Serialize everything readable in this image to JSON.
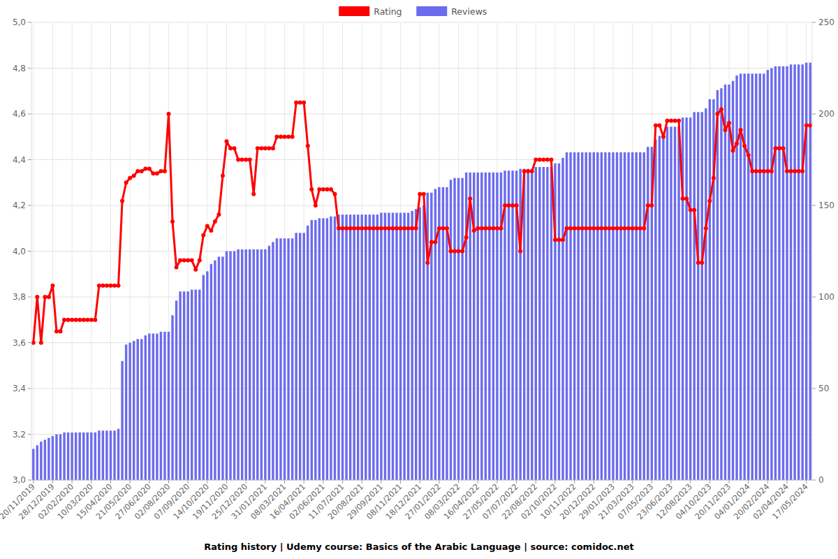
{
  "chart_data": {
    "type": "bar",
    "title": "Rating history | Udemy course: Basics of the Arabic Language | source: comidoc.net",
    "categories": [
      "20/11/2019",
      null,
      null,
      null,
      null,
      "28/12/2019",
      null,
      null,
      null,
      null,
      "02/02/2020",
      null,
      null,
      null,
      null,
      "10/03/2020",
      null,
      null,
      null,
      null,
      "15/04/2020",
      null,
      null,
      null,
      null,
      "21/05/2020",
      null,
      null,
      null,
      null,
      "27/06/2020",
      null,
      null,
      null,
      null,
      "02/08/2020",
      null,
      null,
      null,
      null,
      "07/09/2020",
      null,
      null,
      null,
      null,
      "14/10/2020",
      null,
      null,
      null,
      null,
      "19/11/2020",
      null,
      null,
      null,
      null,
      "25/12/2020",
      null,
      null,
      null,
      null,
      "31/01/2021",
      null,
      null,
      null,
      null,
      "08/03/2021",
      null,
      null,
      null,
      null,
      "16/04/2021",
      null,
      null,
      null,
      null,
      "02/06/2021",
      null,
      null,
      null,
      null,
      "11/07/2021",
      null,
      null,
      null,
      null,
      "20/08/2021",
      null,
      null,
      null,
      null,
      "29/09/2021",
      null,
      null,
      null,
      null,
      "08/11/2021",
      null,
      null,
      null,
      null,
      "18/12/2021",
      null,
      null,
      null,
      null,
      "27/01/2022",
      null,
      null,
      null,
      null,
      "08/03/2022",
      null,
      null,
      null,
      null,
      "16/04/2022",
      null,
      null,
      null,
      null,
      "27/05/2022",
      null,
      null,
      null,
      null,
      "07/07/2022",
      null,
      null,
      null,
      null,
      "22/08/2022",
      null,
      null,
      null,
      null,
      "02/10/2022",
      null,
      null,
      null,
      null,
      "10/11/2022",
      null,
      null,
      null,
      null,
      "20/12/2022",
      null,
      null,
      null,
      null,
      "29/01/2023",
      null,
      null,
      null,
      null,
      "21/03/2023",
      null,
      null,
      null,
      null,
      "07/05/2023",
      null,
      null,
      null,
      null,
      "23/06/2023",
      null,
      null,
      null,
      null,
      "12/08/2023",
      null,
      null,
      null,
      null,
      "04/10/2023",
      null,
      null,
      null,
      null,
      "20/11/2023",
      null,
      null,
      null,
      null,
      "04/01/2024",
      null,
      null,
      null,
      null,
      "20/02/2024",
      null,
      null,
      null,
      null,
      "02/04/2024",
      null,
      null,
      null,
      null,
      "17/05/2024",
      null
    ],
    "series": [
      {
        "name": "Rating",
        "type": "line",
        "color": "#ff0000",
        "marker": "circle",
        "axis": "y",
        "values": [
          3.6,
          3.8,
          3.6,
          3.8,
          3.8,
          3.85,
          3.65,
          3.65,
          3.7,
          3.7,
          3.7,
          3.7,
          3.7,
          3.7,
          3.7,
          3.7,
          3.7,
          3.85,
          3.85,
          3.85,
          3.85,
          3.85,
          3.85,
          4.22,
          4.3,
          4.32,
          4.33,
          4.35,
          4.35,
          4.36,
          4.36,
          4.34,
          4.34,
          4.35,
          4.35,
          4.6,
          4.13,
          3.93,
          3.96,
          3.96,
          3.96,
          3.96,
          3.92,
          3.96,
          4.07,
          4.11,
          4.09,
          4.13,
          4.16,
          4.33,
          4.48,
          4.45,
          4.45,
          4.4,
          4.4,
          4.4,
          4.4,
          4.25,
          4.45,
          4.45,
          4.45,
          4.45,
          4.45,
          4.5,
          4.5,
          4.5,
          4.5,
          4.5,
          4.65,
          4.65,
          4.65,
          4.46,
          4.27,
          4.2,
          4.27,
          4.27,
          4.27,
          4.27,
          4.25,
          4.1,
          4.1,
          4.1,
          4.1,
          4.1,
          4.1,
          4.1,
          4.1,
          4.1,
          4.1,
          4.1,
          4.1,
          4.1,
          4.1,
          4.1,
          4.1,
          4.1,
          4.1,
          4.1,
          4.1,
          4.1,
          4.25,
          4.25,
          3.95,
          4.04,
          4.04,
          4.1,
          4.1,
          4.1,
          4.0,
          4.0,
          4.0,
          4.0,
          4.06,
          4.23,
          4.09,
          4.1,
          4.1,
          4.1,
          4.1,
          4.1,
          4.1,
          4.1,
          4.2,
          4.2,
          4.2,
          4.2,
          4.0,
          4.35,
          4.35,
          4.35,
          4.4,
          4.4,
          4.4,
          4.4,
          4.4,
          4.05,
          4.05,
          4.05,
          4.1,
          4.1,
          4.1,
          4.1,
          4.1,
          4.1,
          4.1,
          4.1,
          4.1,
          4.1,
          4.1,
          4.1,
          4.1,
          4.1,
          4.1,
          4.1,
          4.1,
          4.1,
          4.1,
          4.1,
          4.1,
          4.2,
          4.2,
          4.55,
          4.55,
          4.5,
          4.57,
          4.57,
          4.57,
          4.57,
          4.23,
          4.23,
          4.18,
          4.18,
          3.95,
          3.95,
          4.1,
          4.22,
          4.32,
          4.6,
          4.62,
          4.53,
          4.56,
          4.44,
          4.47,
          4.53,
          4.46,
          4.42,
          4.35,
          4.35,
          4.35,
          4.35,
          4.35,
          4.35,
          4.45,
          4.45,
          4.45,
          4.35,
          4.35,
          4.35,
          4.35,
          4.35,
          4.55,
          4.55
        ]
      },
      {
        "name": "Reviews",
        "type": "bar",
        "color": "#6b6bef",
        "axis": "y2",
        "values": [
          17,
          19,
          21,
          22,
          23,
          24,
          25,
          25,
          26,
          26,
          26,
          26,
          26,
          26,
          26,
          26,
          26,
          27,
          27,
          27,
          27,
          27,
          28,
          65,
          74,
          75,
          76,
          77,
          77,
          79,
          80,
          80,
          80,
          81,
          81,
          81,
          90,
          98,
          103,
          103,
          103,
          104,
          104,
          104,
          112,
          114,
          118,
          120,
          122,
          122,
          125,
          125,
          125,
          126,
          126,
          126,
          126,
          126,
          126,
          126,
          126,
          128,
          130,
          132,
          132,
          132,
          132,
          132,
          135,
          135,
          135,
          139,
          142,
          142,
          143,
          143,
          143,
          144,
          144,
          145,
          145,
          145,
          145,
          145,
          145,
          145,
          145,
          145,
          145,
          145,
          146,
          146,
          146,
          146,
          146,
          146,
          146,
          146,
          147,
          148,
          149,
          150,
          157,
          157,
          159,
          160,
          160,
          160,
          164,
          165,
          165,
          165,
          168,
          168,
          168,
          168,
          168,
          168,
          168,
          168,
          168,
          168,
          169,
          169,
          169,
          169,
          170,
          170,
          170,
          170,
          171,
          171,
          171,
          171,
          171,
          173,
          173,
          176,
          179,
          179,
          179,
          179,
          179,
          179,
          179,
          179,
          179,
          179,
          179,
          179,
          179,
          179,
          179,
          179,
          179,
          179,
          179,
          179,
          179,
          182,
          182,
          186,
          188,
          188,
          193,
          193,
          193,
          193,
          198,
          198,
          198,
          201,
          201,
          201,
          203,
          208,
          208,
          213,
          214,
          216,
          216,
          218,
          221,
          222,
          222,
          222,
          222,
          222,
          222,
          222,
          224,
          225,
          226,
          226,
          226,
          226,
          227,
          227,
          227,
          227,
          228,
          228
        ]
      }
    ],
    "ylim": [
      3,
      5
    ],
    "yticks": [
      {
        "value": 3,
        "label": "3,0"
      },
      {
        "value": 3.2,
        "label": "3,2"
      },
      {
        "value": 3.4,
        "label": "3,4"
      },
      {
        "value": 3.6,
        "label": "3,6"
      },
      {
        "value": 3.8,
        "label": "3,8"
      },
      {
        "value": 4,
        "label": "4,0"
      },
      {
        "value": 4.2,
        "label": "4,2"
      },
      {
        "value": 4.4,
        "label": "4,4"
      },
      {
        "value": 4.6,
        "label": "4,6"
      },
      {
        "value": 4.8,
        "label": "4,8"
      },
      {
        "value": 5,
        "label": "5,0"
      }
    ],
    "y2lim": [
      0,
      250
    ],
    "y2ticks": [
      0,
      50,
      100,
      150,
      200,
      250
    ],
    "grid": true,
    "legend": "top"
  }
}
